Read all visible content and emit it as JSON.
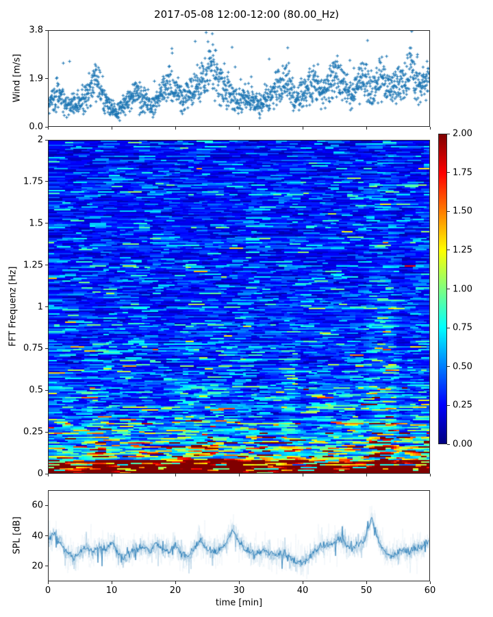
{
  "title": "2017-05-08 12:00-12:00 (80.00_Hz)",
  "colors": {
    "series_blue": "#1f77b4",
    "spine": "#262626",
    "background": "#ffffff"
  },
  "chart_data": [
    {
      "type": "scatter",
      "name": "wind-speed",
      "ylabel": "Wind [m/s]",
      "marker": "+",
      "color": "#1f77b4",
      "ylim": [
        0,
        3.8
      ],
      "xlim": [
        0,
        60
      ],
      "yticks": {
        "values": [
          0,
          1.9,
          3.8
        ],
        "labels": [
          "0.0",
          "1.9",
          "3.8"
        ]
      },
      "xticks": {
        "values": [
          0,
          10,
          20,
          30,
          40,
          50,
          60
        ],
        "labels": []
      },
      "n_points": 1750,
      "seed": 42,
      "spread_low": 0.45,
      "spread_high": 1.05,
      "profile_t": [
        0,
        1.5,
        3,
        4.5,
        6,
        7.5,
        9,
        10.5,
        12,
        13.5,
        15,
        16.5,
        18,
        19.5,
        21,
        22.5,
        24,
        25.5,
        27,
        28.5,
        30,
        31.5,
        33,
        34.5,
        36,
        37.5,
        39,
        40.5,
        42,
        43.5,
        45,
        46.5,
        48,
        49.5,
        51,
        52.5,
        54,
        55.5,
        57,
        58.5,
        60
      ],
      "profile_mean": [
        1.0,
        1.3,
        0.8,
        0.9,
        1.3,
        1.9,
        1.0,
        0.6,
        0.8,
        1.5,
        1.0,
        0.8,
        1.5,
        1.7,
        1.0,
        1.4,
        1.9,
        2.6,
        1.8,
        1.5,
        1.0,
        1.2,
        0.9,
        1.1,
        1.6,
        1.9,
        1.0,
        1.5,
        1.8,
        1.3,
        2.1,
        1.6,
        1.3,
        1.9,
        1.5,
        2.0,
        1.4,
        1.7,
        2.2,
        1.7,
        1.8
      ]
    },
    {
      "type": "heatmap",
      "name": "fft-spectrogram",
      "ylabel": "FFT Frequenz [Hz]",
      "ylim": [
        0,
        2
      ],
      "xlim": [
        0,
        60
      ],
      "clim": [
        0,
        2
      ],
      "colormap": "jet",
      "yticks": {
        "values": [
          0,
          0.25,
          0.5,
          0.75,
          1,
          1.25,
          1.5,
          1.75,
          2
        ],
        "labels": [
          "0",
          "0.25",
          "0.5",
          "0.75",
          "1",
          "1.25",
          "1.5",
          "1.75",
          "2"
        ]
      },
      "xticks": {
        "values": [
          0,
          10,
          20,
          30,
          40,
          50,
          60
        ],
        "labels": []
      },
      "colorbar": {
        "ticks": {
          "values": [
            0,
            0.25,
            0.5,
            0.75,
            1,
            1.25,
            1.5,
            1.75,
            2
          ],
          "labels": [
            "0.00",
            "0.25",
            "0.50",
            "0.75",
            "1.00",
            "1.25",
            "1.50",
            "1.75",
            "2.00"
          ]
        }
      },
      "seed": 7,
      "row_noise_sd": 0.22,
      "cell_noise_sd": 0.5,
      "base_freqs": [
        0,
        0.03,
        0.06,
        0.1,
        0.15,
        0.25,
        0.4,
        0.6,
        1.0,
        1.5,
        2.0
      ],
      "base_vals": [
        3.0,
        2.2,
        1.35,
        0.9,
        0.66,
        0.5,
        0.4,
        0.35,
        0.3,
        0.28,
        0.27
      ],
      "events": [
        {
          "t": 2,
          "sigma": 1.0,
          "amp": 0.3,
          "fmax": 0.3
        },
        {
          "t": 8,
          "sigma": 1.5,
          "amp": 0.55,
          "fmax": 0.28
        },
        {
          "t": 14,
          "sigma": 1.2,
          "amp": 0.4,
          "fmax": 0.22
        },
        {
          "t": 19,
          "sigma": 1.5,
          "amp": 0.45,
          "fmax": 0.25
        },
        {
          "t": 23.5,
          "sigma": 2.2,
          "amp": 0.9,
          "fmax": 0.32
        },
        {
          "t": 29,
          "sigma": 1.2,
          "amp": 0.55,
          "fmax": 0.35
        },
        {
          "t": 33.5,
          "sigma": 1.0,
          "amp": 0.3,
          "fmax": 0.3
        },
        {
          "t": 38,
          "sigma": 1.2,
          "amp": 0.5,
          "fmax": 0.5
        },
        {
          "t": 44,
          "sigma": 1.5,
          "amp": 0.45,
          "fmax": 0.35
        },
        {
          "t": 48,
          "sigma": 1.0,
          "amp": 0.35,
          "fmax": 0.4
        },
        {
          "t": 51.8,
          "sigma": 1.3,
          "amp": 0.9,
          "fmax": 1.0
        },
        {
          "t": 54,
          "sigma": 0.9,
          "amp": 0.65,
          "fmax": 0.8
        },
        {
          "t": 58.5,
          "sigma": 1.2,
          "amp": 0.55,
          "fmax": 0.45
        }
      ]
    },
    {
      "type": "line",
      "name": "spl",
      "ylabel": "SPL [dB]",
      "xlabel": "time [min]",
      "color": "#1f77b4",
      "ylim": [
        10,
        70
      ],
      "xlim": [
        0,
        60
      ],
      "yticks": {
        "values": [
          20,
          40,
          60
        ],
        "labels": [
          "20",
          "40",
          "60"
        ]
      },
      "xticks": {
        "values": [
          0,
          10,
          20,
          30,
          40,
          50,
          60
        ],
        "labels": [
          "0",
          "10",
          "20",
          "30",
          "40",
          "50",
          "60"
        ]
      },
      "seed": 99,
      "profile_t": [
        0,
        1,
        2,
        3,
        4,
        5,
        6,
        7,
        8,
        9,
        10,
        11,
        12,
        13,
        14,
        15,
        16,
        17,
        18,
        19,
        20,
        21,
        22,
        23,
        24,
        25,
        26,
        27,
        28,
        29,
        30,
        31,
        32,
        33,
        34,
        35,
        36,
        37,
        38,
        39,
        40,
        41,
        42,
        43,
        44,
        45,
        46,
        47,
        48,
        49,
        50,
        51,
        52,
        53,
        54,
        55,
        56,
        57,
        58,
        59,
        60
      ],
      "profile_db": [
        38,
        41,
        34,
        28,
        25,
        29,
        33,
        29,
        33,
        30,
        36,
        28,
        25,
        29,
        31,
        33,
        29,
        35,
        31,
        29,
        34,
        28,
        26,
        31,
        37,
        31,
        29,
        31,
        35,
        44,
        37,
        31,
        29,
        28,
        30,
        28,
        27,
        28,
        25,
        23,
        22,
        25,
        29,
        33,
        34,
        36,
        38,
        34,
        31,
        34,
        38,
        52,
        38,
        29,
        26,
        28,
        31,
        29,
        31,
        33,
        36
      ]
    }
  ]
}
